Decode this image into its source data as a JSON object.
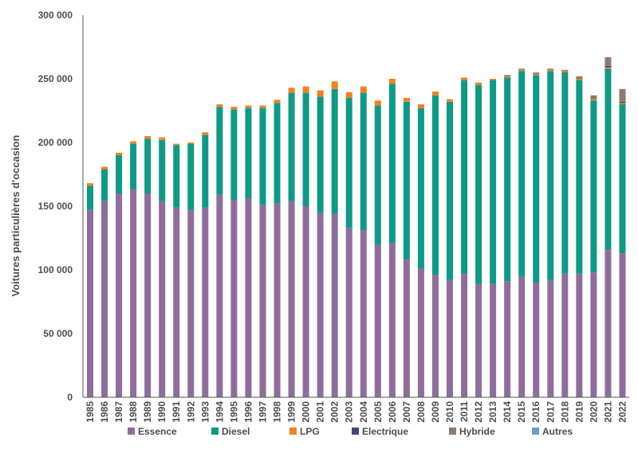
{
  "chart_data": {
    "type": "bar",
    "stacked": true,
    "title": "",
    "xlabel": "",
    "ylabel": "Voitures particulières d'occasion",
    "ylim": [
      0,
      300000
    ],
    "yticks": [
      0,
      50000,
      100000,
      150000,
      200000,
      250000,
      300000
    ],
    "ytick_labels": [
      "0",
      "50 000",
      "100 000",
      "150 000",
      "200 000",
      "250 000",
      "300 000"
    ],
    "grid": false,
    "legend_position": "bottom",
    "categories": [
      "1985",
      "1986",
      "1987",
      "1988",
      "1989",
      "1990",
      "1991",
      "1992",
      "1993",
      "1994",
      "1995",
      "1996",
      "1997",
      "1998",
      "1999",
      "2000",
      "2001",
      "2002",
      "2003",
      "2004",
      "2005",
      "2006",
      "2007",
      "2008",
      "2009",
      "2010",
      "2011",
      "2012",
      "2013",
      "2014",
      "2015",
      "2016",
      "2017",
      "2018",
      "2019",
      "2020",
      "2021",
      "2022"
    ],
    "series": [
      {
        "name": "Essence",
        "color": "#8e6d9b",
        "values": [
          147000,
          154000,
          160000,
          163000,
          160000,
          154000,
          149000,
          147000,
          149000,
          159000,
          155000,
          156000,
          151000,
          152000,
          154000,
          150000,
          145000,
          144000,
          133000,
          131000,
          120000,
          121000,
          108000,
          101000,
          96000,
          92000,
          97000,
          89000,
          89000,
          91000,
          95000,
          90000,
          92000,
          97000,
          97000,
          98000,
          116000,
          113000
        ]
      },
      {
        "name": "Diesel",
        "color": "#0e9a84",
        "values": [
          19000,
          25000,
          30000,
          36000,
          43000,
          48000,
          49000,
          52000,
          57000,
          69000,
          71000,
          71000,
          76000,
          79000,
          85000,
          89000,
          91000,
          98000,
          102000,
          108000,
          109000,
          125000,
          124000,
          126000,
          141000,
          140000,
          152000,
          156000,
          160000,
          160000,
          161000,
          163000,
          164000,
          158000,
          152000,
          135000,
          142000,
          117000
        ]
      },
      {
        "name": "LPG",
        "color": "#f0821e",
        "values": [
          2000,
          2000,
          2000,
          2000,
          2000,
          2000,
          1000,
          1000,
          2000,
          2000,
          2000,
          2000,
          2000,
          2500,
          4000,
          5000,
          5000,
          6000,
          4500,
          5000,
          4000,
          4000,
          3000,
          3000,
          3000,
          2000,
          2000,
          2000,
          1000,
          1000,
          1000,
          1000,
          1000,
          1000,
          1000,
          1000,
          1000,
          1000
        ]
      },
      {
        "name": "Electrique",
        "color": "#3d4a7a",
        "values": [
          0,
          0,
          0,
          0,
          0,
          0,
          0,
          0,
          0,
          0,
          0,
          0,
          0,
          0,
          0,
          0,
          0,
          0,
          0,
          0,
          0,
          0,
          0,
          0,
          0,
          0,
          0,
          0,
          0,
          0,
          0,
          0,
          0,
          0,
          0,
          0,
          1000,
          1000
        ]
      },
      {
        "name": "Hybride",
        "color": "#8c7b70",
        "values": [
          0,
          0,
          0,
          0,
          0,
          0,
          0,
          0,
          0,
          0,
          0,
          0,
          0,
          0,
          0,
          0,
          0,
          0,
          0,
          0,
          0,
          0,
          0,
          0,
          0,
          0,
          0,
          0,
          0,
          1000,
          1000,
          1000,
          1000,
          1000,
          2000,
          3000,
          7000,
          10000
        ]
      },
      {
        "name": "Autres",
        "color": "#6a9fc8",
        "values": [
          0,
          0,
          0,
          0,
          0,
          0,
          0,
          0,
          0,
          0,
          0,
          0,
          0,
          0,
          0,
          0,
          0,
          0,
          0,
          0,
          0,
          0,
          0,
          0,
          0,
          0,
          0,
          0,
          0,
          0,
          0,
          0,
          0,
          0,
          0,
          0,
          0,
          0
        ]
      }
    ]
  }
}
